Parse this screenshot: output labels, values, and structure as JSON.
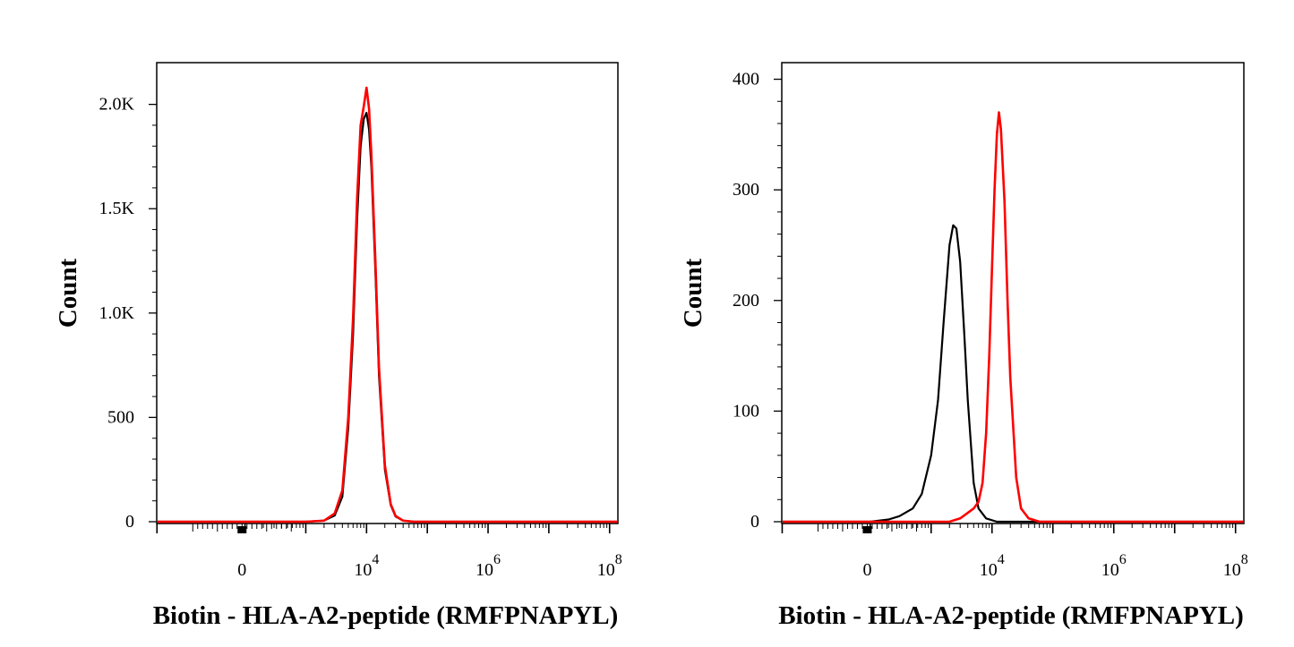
{
  "chart_data": [
    {
      "type": "line",
      "title": "",
      "xlabel": "Biotin - HLA-A2-peptide (RMFPNAPYL)",
      "ylabel": "Count",
      "x_scale": "biexponential",
      "x_tick_labels": [
        {
          "value": 0,
          "base": "0",
          "exp": ""
        },
        {
          "value": 10000,
          "base": "10",
          "exp": "4"
        },
        {
          "value": 1000000,
          "base": "10",
          "exp": "6"
        },
        {
          "value": 100000000,
          "base": "10",
          "exp": "8"
        }
      ],
      "y_tick_labels": [
        {
          "value": 0,
          "label": "0"
        },
        {
          "value": 500,
          "label": "500"
        },
        {
          "value": 1000,
          "label": "1.0K"
        },
        {
          "value": 1500,
          "label": "1.5K"
        },
        {
          "value": 2000,
          "label": "2.0K"
        }
      ],
      "ylim": [
        0,
        2200
      ],
      "grid": false,
      "series": [
        {
          "color": "#000000",
          "x": [
            1000,
            2000,
            3000,
            4000,
            5000,
            6000,
            7000,
            8000,
            9000,
            10000,
            11000,
            12000,
            14000,
            16000,
            20000,
            25000,
            30000,
            40000,
            60000
          ],
          "values": [
            0,
            5,
            30,
            120,
            450,
            900,
            1450,
            1800,
            1930,
            1960,
            1880,
            1700,
            1200,
            700,
            250,
            80,
            25,
            5,
            0
          ]
        },
        {
          "color": "#ff0000",
          "x": [
            1000,
            2000,
            3000,
            4000,
            5000,
            6000,
            7000,
            8000,
            9000,
            10000,
            11000,
            12000,
            14000,
            16000,
            20000,
            25000,
            30000,
            40000,
            60000
          ],
          "values": [
            0,
            5,
            40,
            150,
            500,
            980,
            1550,
            1900,
            1990,
            2080,
            1980,
            1760,
            1250,
            740,
            270,
            85,
            28,
            5,
            0
          ]
        }
      ]
    },
    {
      "type": "line",
      "title": "",
      "xlabel": "Biotin - HLA-A2-peptide (RMFPNAPYL)",
      "ylabel": "Count",
      "x_scale": "biexponential",
      "x_tick_labels": [
        {
          "value": 0,
          "base": "0",
          "exp": ""
        },
        {
          "value": 10000,
          "base": "10",
          "exp": "4"
        },
        {
          "value": 1000000,
          "base": "10",
          "exp": "6"
        },
        {
          "value": 100000000,
          "base": "10",
          "exp": "8"
        }
      ],
      "y_tick_labels": [
        {
          "value": 0,
          "label": "0"
        },
        {
          "value": 100,
          "label": "100"
        },
        {
          "value": 200,
          "label": "200"
        },
        {
          "value": 300,
          "label": "300"
        },
        {
          "value": 400,
          "label": "400"
        }
      ],
      "ylim": [
        0,
        415
      ],
      "grid": false,
      "series": [
        {
          "color": "#000000",
          "x": [
            100,
            200,
            300,
            500,
            700,
            1000,
            1300,
            1600,
            2000,
            2300,
            2600,
            3000,
            3500,
            4000,
            5000,
            6000,
            8000,
            12000,
            20000
          ],
          "values": [
            0,
            2,
            5,
            12,
            25,
            60,
            110,
            180,
            250,
            268,
            265,
            235,
            170,
            110,
            35,
            12,
            3,
            0,
            0
          ]
        },
        {
          "color": "#ff0000",
          "x": [
            2000,
            3000,
            4000,
            5000,
            6000,
            7000,
            8000,
            9000,
            10000,
            11000,
            12000,
            13000,
            14000,
            16000,
            18000,
            20000,
            25000,
            30000,
            40000,
            60000
          ],
          "values": [
            0,
            3,
            8,
            12,
            18,
            35,
            80,
            150,
            230,
            300,
            350,
            370,
            355,
            290,
            200,
            130,
            40,
            12,
            3,
            0
          ]
        }
      ]
    }
  ]
}
